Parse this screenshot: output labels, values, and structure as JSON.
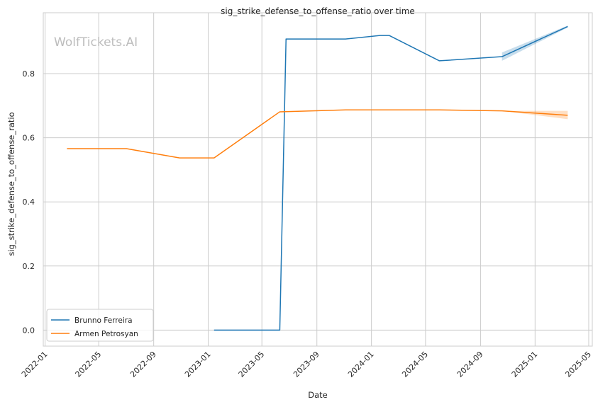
{
  "chart_data": {
    "type": "line",
    "title": "sig_strike_defense_to_offense_ratio over time",
    "xlabel": "Date",
    "ylabel": "sig_strike_defense_to_offense_ratio",
    "watermark": "WolfTickets.AI",
    "xlim": [
      "2021-12-28",
      "2025-05-09"
    ],
    "ylim": [
      -0.05,
      0.99
    ],
    "x_ticks": [
      "2022-01",
      "2022-05",
      "2022-09",
      "2023-01",
      "2023-05",
      "2023-09",
      "2024-01",
      "2024-05",
      "2024-09",
      "2025-01",
      "2025-05"
    ],
    "y_ticks": [
      0.0,
      0.2,
      0.4,
      0.6,
      0.8
    ],
    "y_tick_labels": [
      "0.0",
      "0.2",
      "0.4",
      "0.6",
      "0.8"
    ],
    "grid": true,
    "legend_position": "lower left",
    "series": [
      {
        "name": "Brunno Ferreira",
        "color": "#1f77b4",
        "points": [
          [
            "2023-01-14",
            0.0
          ],
          [
            "2023-06-10",
            0.0
          ],
          [
            "2023-06-24",
            0.908
          ],
          [
            "2023-11-04",
            0.908
          ],
          [
            "2024-01-20",
            0.919
          ],
          [
            "2024-02-10",
            0.919
          ],
          [
            "2024-06-01",
            0.84
          ],
          [
            "2024-10-19",
            0.853
          ],
          [
            "2025-03-15",
            0.947
          ]
        ],
        "band": [
          [
            "2024-10-19",
            0.84,
            0.866
          ],
          [
            "2025-03-15",
            0.944,
            0.95
          ]
        ]
      },
      {
        "name": "Armen Petrosyan",
        "color": "#ff7f0e",
        "points": [
          [
            "2022-02-19",
            0.566
          ],
          [
            "2022-07-02",
            0.566
          ],
          [
            "2022-10-29",
            0.537
          ],
          [
            "2023-01-14",
            0.537
          ],
          [
            "2023-06-10",
            0.681
          ],
          [
            "2023-11-04",
            0.687
          ],
          [
            "2024-06-01",
            0.687
          ],
          [
            "2024-10-19",
            0.684
          ],
          [
            "2025-03-15",
            0.67
          ]
        ],
        "band": [
          [
            "2024-10-19",
            0.684,
            0.684
          ],
          [
            "2025-03-15",
            0.658,
            0.684
          ]
        ]
      }
    ]
  }
}
